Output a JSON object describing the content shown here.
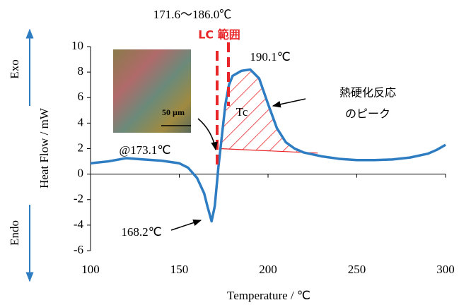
{
  "chart_data": {
    "type": "line",
    "x": [
      100,
      110,
      120,
      130,
      140,
      150,
      155,
      160,
      164,
      166,
      168.2,
      170,
      172,
      174,
      176,
      178,
      180,
      185,
      190,
      195,
      200,
      205,
      210,
      215,
      220,
      230,
      240,
      250,
      260,
      270,
      280,
      290,
      295,
      300
    ],
    "values": [
      0.85,
      1.0,
      1.25,
      1.15,
      1.05,
      0.85,
      0.5,
      -0.3,
      -1.5,
      -2.6,
      -3.7,
      -2.5,
      0.5,
      3.0,
      5.5,
      7.0,
      7.7,
      8.1,
      8.2,
      7.5,
      5.5,
      3.6,
      2.5,
      2.0,
      1.7,
      1.4,
      1.2,
      1.1,
      1.1,
      1.15,
      1.3,
      1.6,
      1.9,
      2.3
    ],
    "color": "#2e7dc2",
    "xlim": [
      100,
      300
    ],
    "xticks": [
      100,
      150,
      200,
      250,
      300
    ],
    "ylim": [
      -6,
      10
    ],
    "yticks": [
      -6,
      -4,
      -2,
      0,
      2,
      4,
      6,
      8,
      10
    ],
    "xlabel": "Temperature / ℃",
    "ylabel": "Heat Flow / mW",
    "annotations": [
      "171.6～186.0℃",
      "LC 範囲",
      "190.1℃",
      "熱硬化反応",
      "のピーク",
      "Tc",
      "@173.1℃",
      "168.2℃",
      "50 µm",
      "Exo",
      "Endo"
    ]
  }
}
